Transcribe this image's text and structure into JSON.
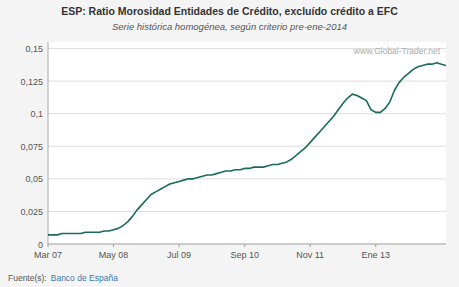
{
  "chart_data": {
    "type": "line",
    "title": "ESP: Ratio Morosidad Entidades de Crédito, excluído crédito a EFC",
    "subtitle": "Serie histórica homogénea, según criterio pre-ene-2014",
    "annotations": [
      "www.Global-Trader.net",
      "Fuente(s):",
      "Banco de España"
    ],
    "color": "#1a6b5a",
    "grid": true,
    "xlim": [
      0,
      85
    ],
    "xticks": [
      {
        "value": 0,
        "label": "Mar 07"
      },
      {
        "value": 14,
        "label": "May 08"
      },
      {
        "value": 28,
        "label": "Jul 09"
      },
      {
        "value": 42,
        "label": "Sep 10"
      },
      {
        "value": 56,
        "label": "Nov 11"
      },
      {
        "value": 70,
        "label": "Ene 13"
      }
    ],
    "ylim": [
      0,
      0.155
    ],
    "yticks": [
      0,
      {
        "value": 0.025,
        "label": "0,025"
      },
      {
        "value": 0.05,
        "label": "0,05"
      },
      {
        "value": 0.075,
        "label": "0,075"
      },
      {
        "value": 0.1,
        "label": "0,1"
      },
      {
        "value": 0.125,
        "label": "0,125"
      },
      {
        "value": 0.15,
        "label": "0,15"
      }
    ],
    "x": [
      0,
      1,
      2,
      3,
      4,
      5,
      6,
      7,
      8,
      9,
      10,
      11,
      12,
      13,
      14,
      15,
      16,
      17,
      18,
      19,
      20,
      21,
      22,
      23,
      24,
      25,
      26,
      27,
      28,
      29,
      30,
      31,
      32,
      33,
      34,
      35,
      36,
      37,
      38,
      39,
      40,
      41,
      42,
      43,
      44,
      45,
      46,
      47,
      48,
      49,
      50,
      51,
      52,
      53,
      54,
      55,
      56,
      57,
      58,
      59,
      60,
      61,
      62,
      63,
      64,
      65,
      66,
      67,
      68,
      69,
      70,
      71,
      72,
      73,
      74,
      75,
      76,
      77,
      78,
      79,
      80,
      81,
      82,
      83,
      84,
      85
    ],
    "values": [
      0.007,
      0.007,
      0.007,
      0.008,
      0.008,
      0.008,
      0.008,
      0.008,
      0.009,
      0.009,
      0.009,
      0.009,
      0.01,
      0.01,
      0.011,
      0.012,
      0.014,
      0.017,
      0.021,
      0.026,
      0.03,
      0.034,
      0.038,
      0.04,
      0.042,
      0.044,
      0.046,
      0.047,
      0.048,
      0.049,
      0.05,
      0.05,
      0.051,
      0.052,
      0.053,
      0.053,
      0.054,
      0.055,
      0.056,
      0.056,
      0.057,
      0.057,
      0.058,
      0.058,
      0.059,
      0.059,
      0.059,
      0.06,
      0.061,
      0.061,
      0.062,
      0.063,
      0.065,
      0.068,
      0.071,
      0.074,
      0.078,
      0.082,
      0.086,
      0.09,
      0.094,
      0.098,
      0.103,
      0.108,
      0.112,
      0.115,
      0.114,
      0.112,
      0.11,
      0.103,
      0.101,
      0.101,
      0.104,
      0.109,
      0.118,
      0.124,
      0.128,
      0.131,
      0.134,
      0.136,
      0.137,
      0.138,
      0.138,
      0.139,
      0.138,
      0.137
    ]
  }
}
